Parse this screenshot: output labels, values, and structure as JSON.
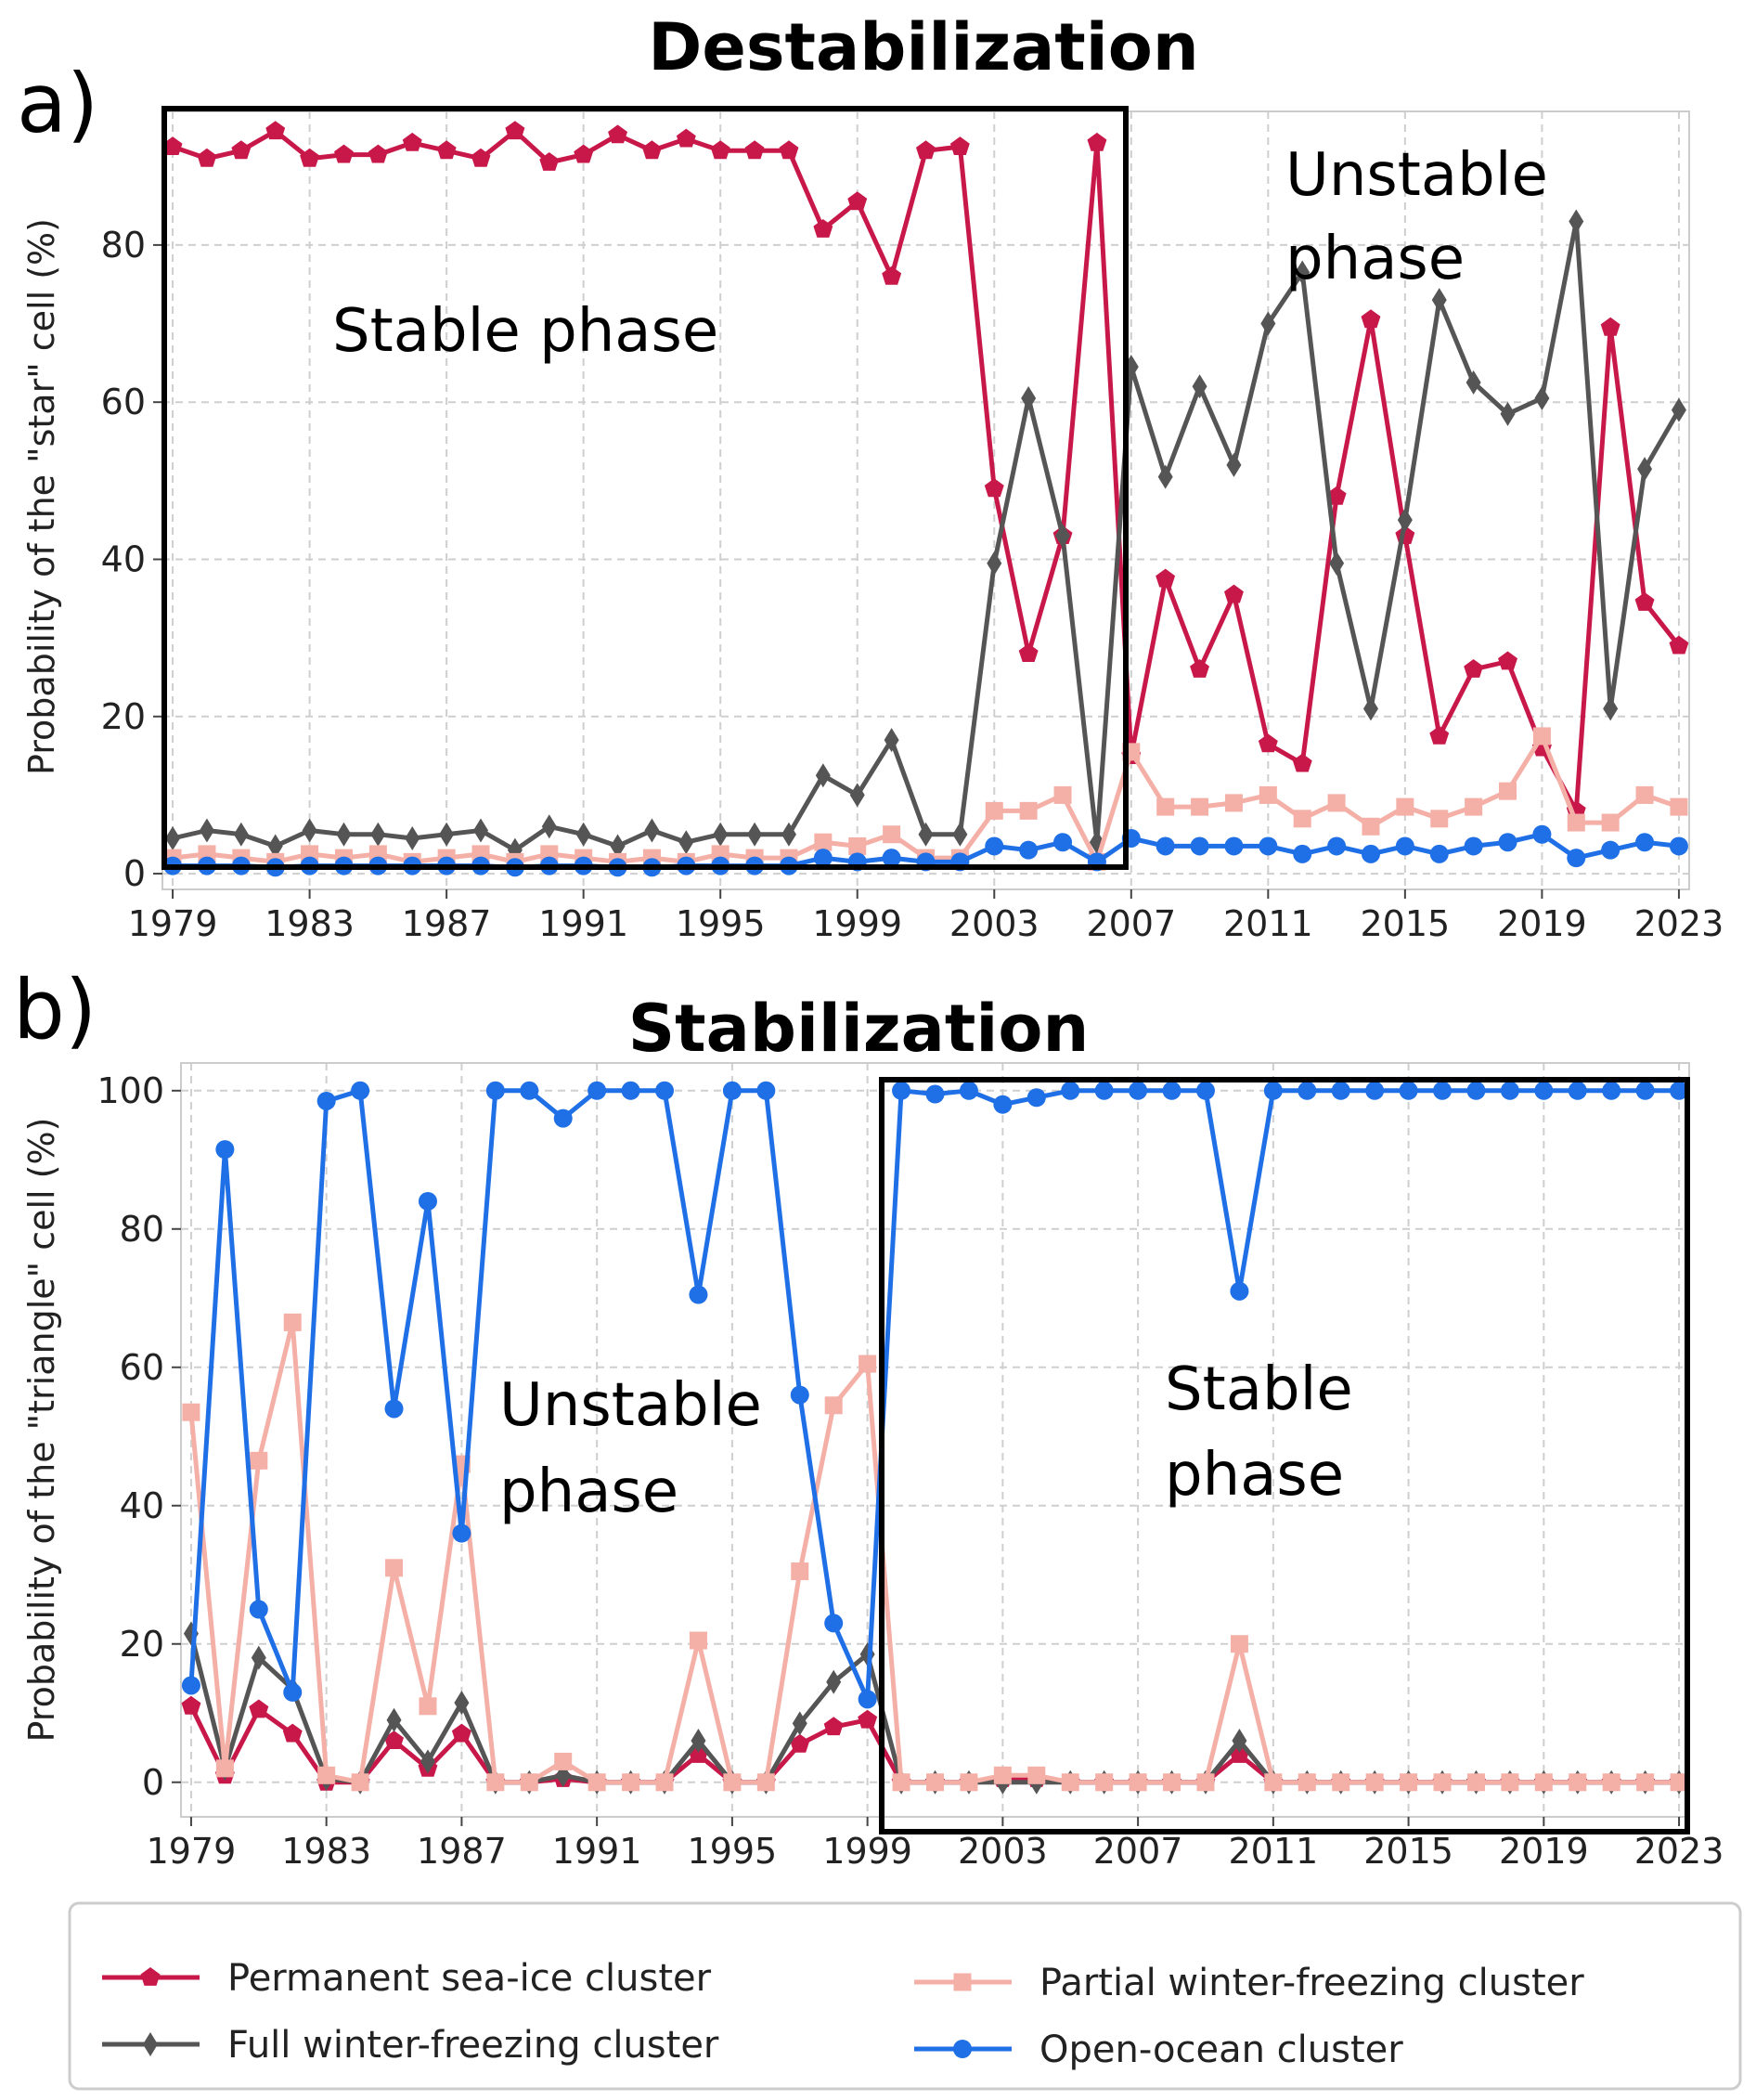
{
  "chart_data": [
    {
      "type": "line",
      "panel_label": "a)",
      "title": "Destabilization",
      "ylabel": "Probability of the \"star\" cell (%)",
      "xlabel": "",
      "xlim": [
        1978.7,
        2023.3
      ],
      "ylim": [
        -2,
        97
      ],
      "xticks": [
        1979,
        1983,
        1987,
        1991,
        1995,
        1999,
        2003,
        2007,
        2011,
        2015,
        2019,
        2023
      ],
      "yticks": [
        0,
        20,
        40,
        60,
        80
      ],
      "grid": true,
      "x": [
        1979,
        1980,
        1981,
        1982,
        1983,
        1984,
        1985,
        1986,
        1987,
        1988,
        1989,
        1990,
        1991,
        1992,
        1993,
        1994,
        1995,
        1996,
        1997,
        1998,
        1999,
        2000,
        2001,
        2002,
        2003,
        2004,
        2005,
        2006,
        2007,
        2008,
        2009,
        2010,
        2011,
        2012,
        2013,
        2014,
        2015,
        2016,
        2017,
        2018,
        2019,
        2020,
        2021,
        2022,
        2023
      ],
      "series": [
        {
          "name": "Permanent sea-ice cluster",
          "color": "#c8184a",
          "marker": "pentagon",
          "values": [
            92.5,
            91,
            92,
            94.5,
            91,
            91.5,
            91.5,
            93,
            92,
            91,
            94.5,
            90.5,
            91.5,
            94,
            92,
            93.5,
            92,
            92,
            92,
            82,
            85.5,
            76,
            92,
            92.5,
            49,
            28,
            43,
            93,
            15,
            37.5,
            26,
            35.5,
            16.5,
            14,
            48,
            70.5,
            43,
            17.5,
            26,
            27,
            16,
            8,
            69.5,
            34.5,
            29
          ]
        },
        {
          "name": "Full winter-freezing cluster",
          "color": "#555555",
          "marker": "diamond",
          "values": [
            4.5,
            5.5,
            5,
            3.5,
            5.5,
            5,
            5,
            4.5,
            5,
            5.5,
            3,
            6,
            5,
            3.5,
            5.5,
            4,
            5,
            5,
            5,
            12.5,
            10,
            17,
            5,
            5,
            39.5,
            60.5,
            43,
            4,
            64.5,
            50.5,
            62,
            52,
            70,
            76.5,
            39.5,
            21,
            45,
            73,
            62.5,
            58.5,
            60.5,
            83,
            21,
            51.5,
            59
          ]
        },
        {
          "name": "Partial winter-freezing cluster",
          "color": "#f4afa6",
          "marker": "square",
          "values": [
            2,
            2.5,
            2,
            1.5,
            2.5,
            2,
            2.5,
            1.5,
            2,
            2.5,
            1.5,
            2.5,
            2,
            1.5,
            2,
            1.5,
            2.5,
            2,
            2,
            4,
            3.5,
            5,
            2,
            2,
            8,
            8,
            10,
            1.5,
            15.5,
            8.5,
            8.5,
            9,
            10,
            7,
            9,
            6,
            8.5,
            7,
            8.5,
            10.5,
            17.5,
            6.5,
            6.5,
            10,
            8.5
          ]
        },
        {
          "name": "Open-ocean cluster",
          "color": "#1f6fe6",
          "marker": "circle",
          "values": [
            1,
            1,
            1,
            0.8,
            1,
            1,
            1,
            1,
            1,
            1,
            0.8,
            1,
            1,
            0.8,
            0.8,
            1,
            1,
            1,
            1,
            2,
            1.5,
            2,
            1.5,
            1.5,
            3.5,
            3,
            4,
            1.5,
            4.5,
            3.5,
            3.5,
            3.5,
            3.5,
            2.5,
            3.5,
            2.5,
            3.5,
            2.5,
            3.5,
            4,
            5,
            2,
            3,
            4,
            3.5
          ]
        }
      ],
      "annotations": [
        "Stable phase",
        "Unstable",
        "phase"
      ]
    },
    {
      "type": "line",
      "panel_label": "b)",
      "title": "Stabilization",
      "ylabel": "Probability of the \"triangle\" cell (%)",
      "xlabel": "",
      "xlim": [
        1978.7,
        2023.3
      ],
      "ylim": [
        -5,
        104
      ],
      "xticks": [
        1979,
        1983,
        1987,
        1991,
        1995,
        1999,
        2003,
        2007,
        2011,
        2015,
        2019,
        2023
      ],
      "yticks": [
        0,
        20,
        40,
        60,
        80,
        100
      ],
      "grid": true,
      "x": [
        1979,
        1980,
        1981,
        1982,
        1983,
        1984,
        1985,
        1986,
        1987,
        1988,
        1989,
        1990,
        1991,
        1992,
        1993,
        1994,
        1995,
        1996,
        1997,
        1998,
        1999,
        2000,
        2001,
        2002,
        2003,
        2004,
        2005,
        2006,
        2007,
        2008,
        2009,
        2010,
        2011,
        2012,
        2013,
        2014,
        2015,
        2016,
        2017,
        2018,
        2019,
        2020,
        2021,
        2022,
        2023
      ],
      "series": [
        {
          "name": "Permanent sea-ice cluster",
          "color": "#c8184a",
          "marker": "pentagon",
          "values": [
            11,
            1,
            10.5,
            7,
            0,
            0,
            6,
            2,
            7,
            0,
            0,
            0.5,
            0,
            0,
            0,
            4,
            0,
            0,
            5.5,
            8,
            9,
            0,
            0,
            0,
            0.5,
            0.5,
            0,
            0,
            0,
            0,
            0,
            4,
            0,
            0,
            0,
            0,
            0,
            0,
            0,
            0,
            0,
            0,
            0,
            0,
            0
          ]
        },
        {
          "name": "Full winter-freezing cluster",
          "color": "#555555",
          "marker": "diamond",
          "values": [
            21.5,
            2,
            18,
            13.5,
            0.5,
            0,
            9,
            3,
            11.5,
            0,
            0,
            1,
            0,
            0,
            0,
            6,
            0,
            0,
            8.5,
            14.5,
            18.5,
            0,
            0,
            0,
            0,
            0,
            0,
            0,
            0,
            0,
            0,
            6,
            0,
            0,
            0,
            0,
            0,
            0,
            0,
            0,
            0,
            0,
            0,
            0,
            0
          ]
        },
        {
          "name": "Partial winter-freezing cluster",
          "color": "#f4afa6",
          "marker": "square",
          "values": [
            53.5,
            2,
            46.5,
            66.5,
            1,
            0,
            31,
            11,
            46,
            0,
            0,
            3,
            0,
            0,
            0,
            20.5,
            0,
            0,
            30.5,
            54.5,
            60.5,
            0,
            0,
            0,
            1,
            1,
            0,
            0,
            0,
            0,
            0,
            20,
            0,
            0,
            0,
            0,
            0,
            0,
            0,
            0,
            0,
            0,
            0,
            0,
            0
          ]
        },
        {
          "name": "Open-ocean cluster",
          "color": "#1f6fe6",
          "marker": "circle",
          "values": [
            14,
            91.5,
            25,
            13,
            98.5,
            100,
            54,
            84,
            36,
            100,
            100,
            96,
            100,
            100,
            100,
            70.5,
            100,
            100,
            56,
            23,
            12,
            100,
            99.5,
            100,
            98,
            99,
            100,
            100,
            100,
            100,
            100,
            71,
            100,
            100,
            100,
            100,
            100,
            100,
            100,
            100,
            100,
            100,
            100,
            100,
            100
          ]
        }
      ],
      "annotations": [
        "Unstable",
        "phase",
        "Stable",
        "phase"
      ]
    }
  ],
  "legend": {
    "placement": "bottom",
    "entries": [
      {
        "name": "Permanent sea-ice cluster",
        "color": "#c8184a",
        "marker": "pentagon"
      },
      {
        "name": "Full winter-freezing cluster",
        "color": "#555555",
        "marker": "diamond"
      },
      {
        "name": "Partial winter-freezing cluster",
        "color": "#f4afa6",
        "marker": "square"
      },
      {
        "name": "Open-ocean cluster",
        "color": "#1f6fe6",
        "marker": "circle"
      }
    ]
  }
}
